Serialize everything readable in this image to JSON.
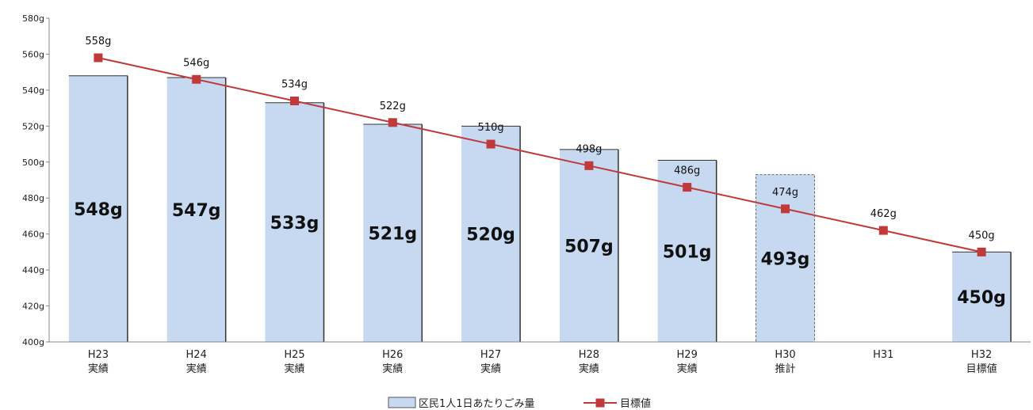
{
  "chart_data": {
    "type": "bar",
    "categories": [
      {
        "period": "H23",
        "status": "実績"
      },
      {
        "period": "H24",
        "status": "実績"
      },
      {
        "period": "H25",
        "status": "実績"
      },
      {
        "period": "H26",
        "status": "実績"
      },
      {
        "period": "H27",
        "status": "実績"
      },
      {
        "period": "H28",
        "status": "実績"
      },
      {
        "period": "H29",
        "status": "実績"
      },
      {
        "period": "H30",
        "status": "推計"
      },
      {
        "period": "H31",
        "status": ""
      },
      {
        "period": "H32",
        "status": "目標値"
      }
    ],
    "series": [
      {
        "name": "区民1人1日あたりごみ量",
        "type": "bar",
        "values": [
          548,
          547,
          533,
          521,
          520,
          507,
          501,
          493,
          null,
          450
        ],
        "labels": [
          "548g",
          "547g",
          "533g",
          "521g",
          "520g",
          "507g",
          "501g",
          "493g",
          "",
          "450g"
        ],
        "color": "#c6d9f1",
        "estimated_index": 7
      },
      {
        "name": "目標値",
        "type": "line",
        "values": [
          558,
          546,
          534,
          522,
          510,
          498,
          486,
          474,
          462,
          450
        ],
        "labels": [
          "558g",
          "546g",
          "534g",
          "522g",
          "510g",
          "498g",
          "486g",
          "474g",
          "462g",
          "450g"
        ],
        "color": "#c0393b"
      }
    ],
    "y_ticks": [
      "400g",
      "420g",
      "440g",
      "460g",
      "480g",
      "500g",
      "520g",
      "540g",
      "560g",
      "580g"
    ],
    "ylim": [
      400,
      580
    ],
    "ytick_step": 20,
    "grid": false,
    "legend_position": "bottom"
  }
}
